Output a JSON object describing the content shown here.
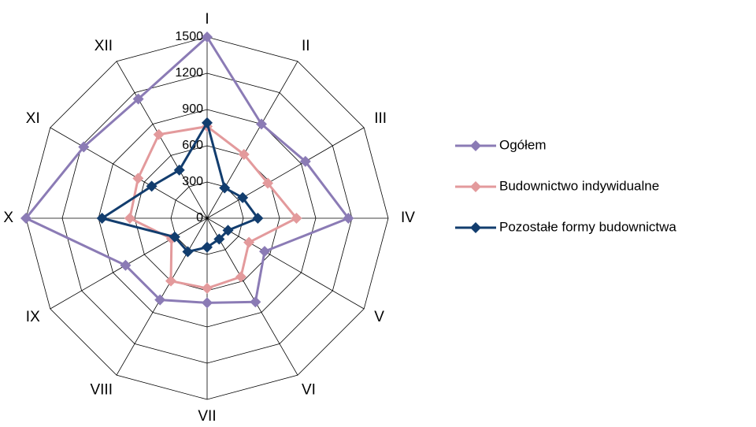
{
  "chart_data": {
    "type": "radar",
    "categories": [
      "I",
      "II",
      "III",
      "IV",
      "V",
      "VI",
      "VII",
      "VIII",
      "IX",
      "X",
      "XI",
      "XII"
    ],
    "rlim": [
      0,
      1500
    ],
    "ticks": [
      0,
      300,
      600,
      900,
      1200,
      1500
    ],
    "tick_labels": [
      "0",
      "300",
      "600",
      "900",
      "1200",
      "1500"
    ],
    "grid": true,
    "legend_position": "right",
    "series": [
      {
        "name": "Ogółem",
        "color": "#8B7BB5",
        "values": [
          1500,
          900,
          940,
          1170,
          550,
          800,
          700,
          780,
          780,
          1500,
          1180,
          1140
        ]
      },
      {
        "name": "Budownictwo indywidualne",
        "color": "#E39A9C",
        "values": [
          760,
          610,
          580,
          740,
          400,
          560,
          580,
          600,
          340,
          640,
          660,
          800
        ]
      },
      {
        "name": "Pozostałe formy budownictwa",
        "color": "#123D6E",
        "values": [
          790,
          290,
          340,
          420,
          200,
          200,
          240,
          320,
          310,
          870,
          530,
          460
        ]
      }
    ]
  }
}
